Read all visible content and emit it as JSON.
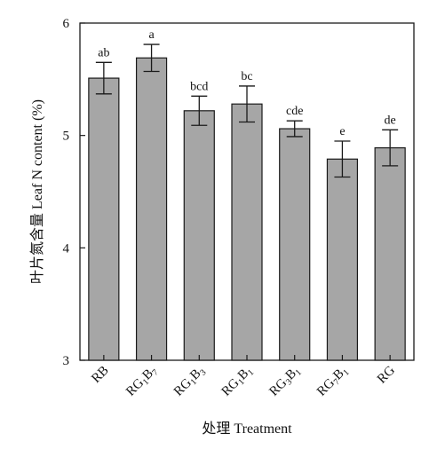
{
  "chart_data": {
    "type": "bar",
    "title": "",
    "xlabel": "处理 Treatment",
    "ylabel": "叶片氮含量 Leaf N content (%)",
    "ylim": [
      3,
      6
    ],
    "yticks": [
      "3",
      "4",
      "5",
      "6"
    ],
    "categories": [
      {
        "id": "RB",
        "parts": [
          {
            "t": "RB",
            "sub": false
          }
        ]
      },
      {
        "id": "RG1B7",
        "parts": [
          {
            "t": "RG",
            "sub": false
          },
          {
            "t": "1",
            "sub": true
          },
          {
            "t": "B",
            "sub": false
          },
          {
            "t": "7",
            "sub": true
          }
        ]
      },
      {
        "id": "RG1B3",
        "parts": [
          {
            "t": "RG",
            "sub": false
          },
          {
            "t": "1",
            "sub": true
          },
          {
            "t": "B",
            "sub": false
          },
          {
            "t": "3",
            "sub": true
          }
        ]
      },
      {
        "id": "RG1B1",
        "parts": [
          {
            "t": "RG",
            "sub": false
          },
          {
            "t": "1",
            "sub": true
          },
          {
            "t": "B",
            "sub": false
          },
          {
            "t": "1",
            "sub": true
          }
        ]
      },
      {
        "id": "RG3B1",
        "parts": [
          {
            "t": "RG",
            "sub": false
          },
          {
            "t": "3",
            "sub": true
          },
          {
            "t": "B",
            "sub": false
          },
          {
            "t": "1",
            "sub": true
          }
        ]
      },
      {
        "id": "RG7B1",
        "parts": [
          {
            "t": "RG",
            "sub": false
          },
          {
            "t": "7",
            "sub": true
          },
          {
            "t": "B",
            "sub": false
          },
          {
            "t": "1",
            "sub": true
          }
        ]
      },
      {
        "id": "RG",
        "parts": [
          {
            "t": "RG",
            "sub": false
          }
        ]
      }
    ],
    "values": [
      5.51,
      5.69,
      5.22,
      5.28,
      5.06,
      4.79,
      4.89
    ],
    "errors": [
      0.14,
      0.12,
      0.13,
      0.16,
      0.07,
      0.16,
      0.16
    ],
    "significance": [
      "ab",
      "a",
      "bcd",
      "bc",
      "cde",
      "e",
      "de"
    ],
    "colors": {
      "bar_fill": "#a6a6a6",
      "bar_stroke": "#1a1a1a",
      "axis": "#1a1a1a"
    },
    "grid": false,
    "legend": "none"
  }
}
